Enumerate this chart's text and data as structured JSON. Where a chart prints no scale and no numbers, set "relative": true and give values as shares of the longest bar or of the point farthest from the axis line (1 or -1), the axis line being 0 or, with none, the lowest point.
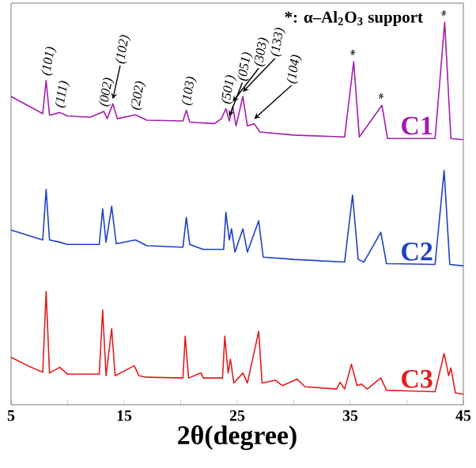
{
  "chart_data": {
    "type": "line",
    "relative": true,
    "xlabel": "2θ(degree)",
    "xlim": [
      5,
      45
    ],
    "xticks": [
      5,
      {
        "value": 10,
        "label": null
      },
      15,
      {
        "value": 20,
        "label": null
      },
      25,
      {
        "value": 30,
        "label": null
      },
      35,
      {
        "value": 40,
        "label": null
      },
      45
    ],
    "series": [
      {
        "name": "C1",
        "color": "#a21caf",
        "x": [
          5.0,
          7.8,
          8.1,
          8.4,
          9.3,
          10,
          12,
          13.2,
          13.5,
          14.0,
          14.4,
          16.0,
          17,
          20.2,
          20.5,
          20.8,
          23,
          23.6,
          24.0,
          24.3,
          24.6,
          24.9,
          25.5,
          25.9,
          26.5,
          27,
          30,
          34.5,
          35.3,
          35.8,
          37.8,
          38.3,
          42.5,
          43.35,
          43.9,
          45
        ],
        "values": [
          0.806,
          0.761,
          0.848,
          0.757,
          0.764,
          0.755,
          0.752,
          0.767,
          0.748,
          0.787,
          0.748,
          0.758,
          0.744,
          0.742,
          0.77,
          0.739,
          0.735,
          0.748,
          0.774,
          0.742,
          0.78,
          0.729,
          0.806,
          0.729,
          0.735,
          0.713,
          0.705,
          0.7,
          0.897,
          0.7,
          0.783,
          0.696,
          0.696,
          1.0,
          0.696,
          0.693
        ]
      },
      {
        "name": "C2",
        "color": "#1f3fc4",
        "x": [
          5.0,
          7.8,
          8.1,
          8.4,
          9.3,
          10,
          12.8,
          13.1,
          13.4,
          13.9,
          14.3,
          16,
          17,
          20.2,
          20.5,
          20.8,
          22,
          23.8,
          24.0,
          24.3,
          24.5,
          24.8,
          25.5,
          25.9,
          26.9,
          27.3,
          30,
          34.5,
          35.2,
          35.7,
          36.2,
          37.7,
          38.2,
          42.5,
          43.3,
          43.8,
          45
        ],
        "values": [
          0.457,
          0.431,
          0.563,
          0.431,
          0.425,
          0.419,
          0.419,
          0.512,
          0.425,
          0.519,
          0.421,
          0.431,
          0.416,
          0.412,
          0.49,
          0.419,
          0.406,
          0.406,
          0.503,
          0.431,
          0.46,
          0.399,
          0.46,
          0.399,
          0.481,
          0.386,
          0.38,
          0.373,
          0.548,
          0.38,
          0.373,
          0.451,
          0.369,
          0.367,
          0.612,
          0.367,
          0.363
        ]
      },
      {
        "name": "C3",
        "color": "#e31b1b",
        "x": [
          5.0,
          6.5,
          7.8,
          8.1,
          8.4,
          9.3,
          10,
          12.8,
          13.1,
          13.4,
          13.9,
          14.2,
          15.9,
          16.3,
          17,
          20.2,
          20.4,
          20.7,
          21.8,
          22,
          23.7,
          23.9,
          24.2,
          24.4,
          24.7,
          25.5,
          25.9,
          26.9,
          27.2,
          28.4,
          29,
          30.3,
          31,
          33.8,
          34.1,
          34.5,
          35.1,
          35.6,
          36,
          36.5,
          37.7,
          38.2,
          42.5,
          43.3,
          43.7,
          43.9,
          44.3,
          45
        ],
        "values": [
          0.124,
          0.102,
          0.085,
          0.296,
          0.083,
          0.098,
          0.08,
          0.08,
          0.248,
          0.076,
          0.199,
          0.076,
          0.102,
          0.076,
          0.072,
          0.07,
          0.179,
          0.07,
          0.083,
          0.07,
          0.07,
          0.179,
          0.083,
          0.119,
          0.057,
          0.083,
          0.057,
          0.192,
          0.057,
          0.064,
          0.05,
          0.067,
          0.047,
          0.041,
          0.059,
          0.041,
          0.106,
          0.05,
          0.054,
          0.041,
          0.07,
          0.038,
          0.034,
          0.134,
          0.076,
          0.096,
          0.031,
          0.028
        ]
      }
    ],
    "annotations": [
      {
        "text": "(101)",
        "x": 8.1,
        "y": 0.848
      },
      {
        "text": "(111)",
        "x": 9.3,
        "y": 0.764
      },
      {
        "text": "(002)",
        "x": 13.2,
        "y": 0.767
      },
      {
        "text": "(102)",
        "x": 14.0,
        "y": 0.787
      },
      {
        "text": "(202)",
        "x": 16.0,
        "y": 0.758
      },
      {
        "text": "(103)",
        "x": 20.5,
        "y": 0.77
      },
      {
        "text": "(501)",
        "x": 24.0,
        "y": 0.774
      },
      {
        "text": "(051)",
        "x": 24.3,
        "y": 0.742
      },
      {
        "text": "(303)",
        "x": 24.6,
        "y": 0.78
      },
      {
        "text": "(133)",
        "x": 25.5,
        "y": 0.806
      },
      {
        "text": "(104)",
        "x": 26.5,
        "y": 0.735
      },
      {
        "text": "*",
        "x": 35.3,
        "y": 0.897
      },
      {
        "text": "*",
        "x": 37.8,
        "y": 0.783
      },
      {
        "text": "*",
        "x": 43.35,
        "y": 1.0
      },
      "*: α–Al$_{2}$O$_{3}$ support"
    ]
  }
}
